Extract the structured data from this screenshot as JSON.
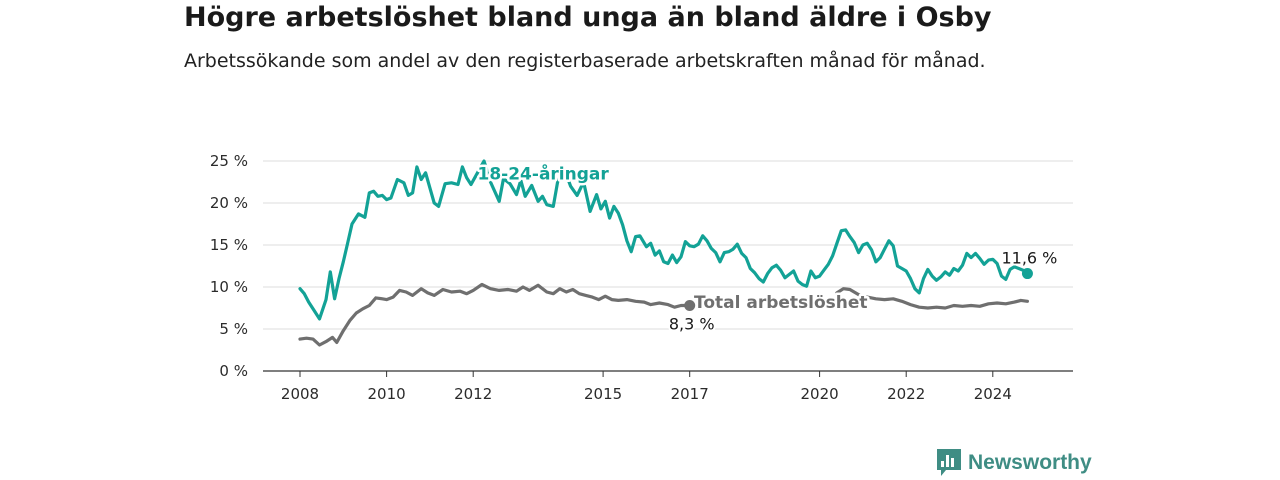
{
  "title": "Högre arbetslöshet bland unga än bland äldre i Osby",
  "subtitle": "Arbetssökande som andel av den registerbaserade arbetskraften månad för månad.",
  "brand": {
    "name": "Newsworthy",
    "color": "#3f8d84",
    "icon": "bar-chart-bubble-icon"
  },
  "chart_data": {
    "type": "line",
    "y_unit": "%",
    "ylim": [
      0,
      25
    ],
    "xlim": [
      2008,
      2025.5
    ],
    "y_ticks": [
      0,
      5,
      10,
      15,
      20,
      25
    ],
    "y_tick_labels": [
      "0 %",
      "5 %",
      "10 %",
      "15 %",
      "20 %",
      "25 %"
    ],
    "x_ticks": [
      2008,
      2010,
      2012,
      2015,
      2017,
      2020,
      2022,
      2024
    ],
    "x_tick_labels": [
      "2008",
      "2010",
      "2012",
      "2015",
      "2017",
      "2020",
      "2022",
      "2024"
    ],
    "grid": true,
    "legend": "inline labels",
    "series": [
      {
        "name": "18-24-åringar",
        "color": "#13a296",
        "label_position": [
          2012.1,
          22.8
        ],
        "end_label": "11,6 %",
        "points": [
          [
            2008.0,
            9.8
          ],
          [
            2008.1,
            9.2
          ],
          [
            2008.2,
            8.2
          ],
          [
            2008.3,
            7.4
          ],
          [
            2008.45,
            6.2
          ],
          [
            2008.6,
            8.5
          ],
          [
            2008.7,
            11.8
          ],
          [
            2008.8,
            8.6
          ],
          [
            2008.9,
            11.0
          ],
          [
            2009.0,
            13.0
          ],
          [
            2009.1,
            15.2
          ],
          [
            2009.2,
            17.5
          ],
          [
            2009.35,
            18.7
          ],
          [
            2009.5,
            18.3
          ],
          [
            2009.6,
            21.2
          ],
          [
            2009.7,
            21.4
          ],
          [
            2009.8,
            20.8
          ],
          [
            2009.9,
            20.9
          ],
          [
            2010.0,
            20.4
          ],
          [
            2010.1,
            20.6
          ],
          [
            2010.25,
            22.8
          ],
          [
            2010.4,
            22.4
          ],
          [
            2010.5,
            20.9
          ],
          [
            2010.6,
            21.2
          ],
          [
            2010.7,
            24.3
          ],
          [
            2010.8,
            22.8
          ],
          [
            2010.9,
            23.6
          ],
          [
            2011.0,
            21.8
          ],
          [
            2011.1,
            20.0
          ],
          [
            2011.2,
            19.6
          ],
          [
            2011.35,
            22.3
          ],
          [
            2011.5,
            22.4
          ],
          [
            2011.65,
            22.2
          ],
          [
            2011.75,
            24.3
          ],
          [
            2011.85,
            23.0
          ],
          [
            2011.95,
            22.2
          ],
          [
            2012.1,
            23.6
          ],
          [
            2012.25,
            25.0
          ],
          [
            2012.4,
            22.5
          ],
          [
            2012.6,
            20.2
          ],
          [
            2012.7,
            22.9
          ],
          [
            2012.85,
            22.3
          ],
          [
            2013.0,
            21.0
          ],
          [
            2013.1,
            22.7
          ],
          [
            2013.2,
            20.8
          ],
          [
            2013.35,
            22.1
          ],
          [
            2013.5,
            20.2
          ],
          [
            2013.6,
            20.8
          ],
          [
            2013.7,
            19.8
          ],
          [
            2013.85,
            19.6
          ],
          [
            2013.95,
            22.5
          ],
          [
            2014.1,
            24.1
          ],
          [
            2014.25,
            22.0
          ],
          [
            2014.4,
            20.9
          ],
          [
            2014.55,
            22.5
          ],
          [
            2014.7,
            19.0
          ],
          [
            2014.85,
            21.0
          ],
          [
            2014.95,
            19.3
          ],
          [
            2015.05,
            20.2
          ],
          [
            2015.15,
            18.2
          ],
          [
            2015.25,
            19.6
          ],
          [
            2015.35,
            18.8
          ],
          [
            2015.45,
            17.4
          ],
          [
            2015.55,
            15.5
          ],
          [
            2015.65,
            14.2
          ],
          [
            2015.75,
            16.0
          ],
          [
            2015.85,
            16.1
          ],
          [
            2016.0,
            14.8
          ],
          [
            2016.1,
            15.2
          ],
          [
            2016.2,
            13.8
          ],
          [
            2016.3,
            14.3
          ],
          [
            2016.4,
            13.0
          ],
          [
            2016.5,
            12.8
          ],
          [
            2016.6,
            13.8
          ],
          [
            2016.7,
            12.9
          ],
          [
            2016.8,
            13.6
          ],
          [
            2016.9,
            15.4
          ],
          [
            2017.0,
            14.9
          ],
          [
            2017.1,
            14.8
          ],
          [
            2017.2,
            15.1
          ],
          [
            2017.3,
            16.1
          ],
          [
            2017.4,
            15.5
          ],
          [
            2017.5,
            14.6
          ],
          [
            2017.6,
            14.1
          ],
          [
            2017.7,
            13.0
          ],
          [
            2017.8,
            14.1
          ],
          [
            2017.9,
            14.2
          ],
          [
            2018.0,
            14.5
          ],
          [
            2018.1,
            15.1
          ],
          [
            2018.2,
            14.0
          ],
          [
            2018.3,
            13.5
          ],
          [
            2018.4,
            12.2
          ],
          [
            2018.5,
            11.7
          ],
          [
            2018.6,
            11.0
          ],
          [
            2018.7,
            10.6
          ],
          [
            2018.8,
            11.6
          ],
          [
            2018.9,
            12.3
          ],
          [
            2019.0,
            12.6
          ],
          [
            2019.1,
            12.0
          ],
          [
            2019.2,
            11.1
          ],
          [
            2019.3,
            11.5
          ],
          [
            2019.4,
            11.9
          ],
          [
            2019.5,
            10.7
          ],
          [
            2019.6,
            10.3
          ],
          [
            2019.7,
            10.1
          ],
          [
            2019.8,
            11.9
          ],
          [
            2019.9,
            11.1
          ],
          [
            2020.0,
            11.3
          ],
          [
            2020.1,
            12.0
          ],
          [
            2020.2,
            12.7
          ],
          [
            2020.3,
            13.7
          ],
          [
            2020.4,
            15.2
          ],
          [
            2020.5,
            16.7
          ],
          [
            2020.6,
            16.8
          ],
          [
            2020.7,
            16.0
          ],
          [
            2020.8,
            15.3
          ],
          [
            2020.9,
            14.1
          ],
          [
            2021.0,
            15.0
          ],
          [
            2021.1,
            15.2
          ],
          [
            2021.2,
            14.4
          ],
          [
            2021.3,
            13.0
          ],
          [
            2021.4,
            13.5
          ],
          [
            2021.5,
            14.5
          ],
          [
            2021.6,
            15.5
          ],
          [
            2021.7,
            14.9
          ],
          [
            2021.8,
            12.5
          ],
          [
            2021.9,
            12.2
          ],
          [
            2022.0,
            11.9
          ],
          [
            2022.1,
            11.0
          ],
          [
            2022.2,
            9.8
          ],
          [
            2022.3,
            9.3
          ],
          [
            2022.4,
            11.0
          ],
          [
            2022.5,
            12.1
          ],
          [
            2022.6,
            11.3
          ],
          [
            2022.7,
            10.8
          ],
          [
            2022.8,
            11.2
          ],
          [
            2022.9,
            11.8
          ],
          [
            2023.0,
            11.4
          ],
          [
            2023.1,
            12.2
          ],
          [
            2023.2,
            11.9
          ],
          [
            2023.3,
            12.6
          ],
          [
            2023.4,
            14.0
          ],
          [
            2023.5,
            13.5
          ],
          [
            2023.6,
            14.0
          ],
          [
            2023.7,
            13.4
          ],
          [
            2023.8,
            12.7
          ],
          [
            2023.9,
            13.2
          ],
          [
            2024.0,
            13.3
          ],
          [
            2024.1,
            12.8
          ],
          [
            2024.2,
            11.3
          ],
          [
            2024.3,
            10.9
          ],
          [
            2024.4,
            12.1
          ],
          [
            2024.5,
            12.4
          ],
          [
            2024.6,
            12.2
          ],
          [
            2024.7,
            12.0
          ],
          [
            2024.8,
            11.6
          ]
        ]
      },
      {
        "name": "Total arbetslöshet",
        "color": "#6f6f6f",
        "label_position": [
          2017.1,
          7.5
        ],
        "end_label": "8,3 %",
        "points": [
          [
            2008.0,
            3.8
          ],
          [
            2008.15,
            3.9
          ],
          [
            2008.3,
            3.8
          ],
          [
            2008.45,
            3.1
          ],
          [
            2008.6,
            3.5
          ],
          [
            2008.75,
            4.0
          ],
          [
            2008.85,
            3.4
          ],
          [
            2009.0,
            4.8
          ],
          [
            2009.15,
            6.0
          ],
          [
            2009.3,
            6.9
          ],
          [
            2009.45,
            7.4
          ],
          [
            2009.6,
            7.8
          ],
          [
            2009.75,
            8.7
          ],
          [
            2009.9,
            8.6
          ],
          [
            2010.0,
            8.5
          ],
          [
            2010.15,
            8.8
          ],
          [
            2010.3,
            9.6
          ],
          [
            2010.45,
            9.4
          ],
          [
            2010.6,
            9.0
          ],
          [
            2010.8,
            9.8
          ],
          [
            2010.95,
            9.3
          ],
          [
            2011.1,
            9.0
          ],
          [
            2011.3,
            9.7
          ],
          [
            2011.5,
            9.4
          ],
          [
            2011.7,
            9.5
          ],
          [
            2011.85,
            9.2
          ],
          [
            2012.0,
            9.6
          ],
          [
            2012.2,
            10.3
          ],
          [
            2012.4,
            9.8
          ],
          [
            2012.6,
            9.6
          ],
          [
            2012.8,
            9.7
          ],
          [
            2013.0,
            9.5
          ],
          [
            2013.15,
            10.0
          ],
          [
            2013.3,
            9.6
          ],
          [
            2013.5,
            10.2
          ],
          [
            2013.7,
            9.4
          ],
          [
            2013.85,
            9.2
          ],
          [
            2014.0,
            9.8
          ],
          [
            2014.15,
            9.4
          ],
          [
            2014.3,
            9.7
          ],
          [
            2014.45,
            9.2
          ],
          [
            2014.6,
            9.0
          ],
          [
            2014.75,
            8.8
          ],
          [
            2014.9,
            8.5
          ],
          [
            2015.05,
            8.9
          ],
          [
            2015.2,
            8.5
          ],
          [
            2015.35,
            8.4
          ],
          [
            2015.55,
            8.5
          ],
          [
            2015.75,
            8.3
          ],
          [
            2015.95,
            8.2
          ],
          [
            2016.1,
            7.9
          ],
          [
            2016.3,
            8.1
          ],
          [
            2016.5,
            7.9
          ],
          [
            2016.65,
            7.6
          ],
          [
            2016.8,
            7.8
          ],
          [
            2017.0,
            7.8
          ]
        ]
      },
      {
        "name": "Total arbetslöshet",
        "color": "#6f6f6f",
        "points": [
          [
            2020.4,
            9.3
          ],
          [
            2020.55,
            9.8
          ],
          [
            2020.7,
            9.7
          ],
          [
            2020.9,
            9.1
          ],
          [
            2021.1,
            8.8
          ],
          [
            2021.3,
            8.6
          ],
          [
            2021.5,
            8.5
          ],
          [
            2021.7,
            8.6
          ],
          [
            2021.9,
            8.3
          ],
          [
            2022.1,
            7.9
          ],
          [
            2022.3,
            7.6
          ],
          [
            2022.5,
            7.5
          ],
          [
            2022.7,
            7.6
          ],
          [
            2022.9,
            7.5
          ],
          [
            2023.1,
            7.8
          ],
          [
            2023.3,
            7.7
          ],
          [
            2023.5,
            7.8
          ],
          [
            2023.7,
            7.7
          ],
          [
            2023.9,
            8.0
          ],
          [
            2024.1,
            8.1
          ],
          [
            2024.3,
            8.0
          ],
          [
            2024.5,
            8.2
          ],
          [
            2024.65,
            8.4
          ],
          [
            2024.8,
            8.3
          ]
        ]
      }
    ]
  }
}
